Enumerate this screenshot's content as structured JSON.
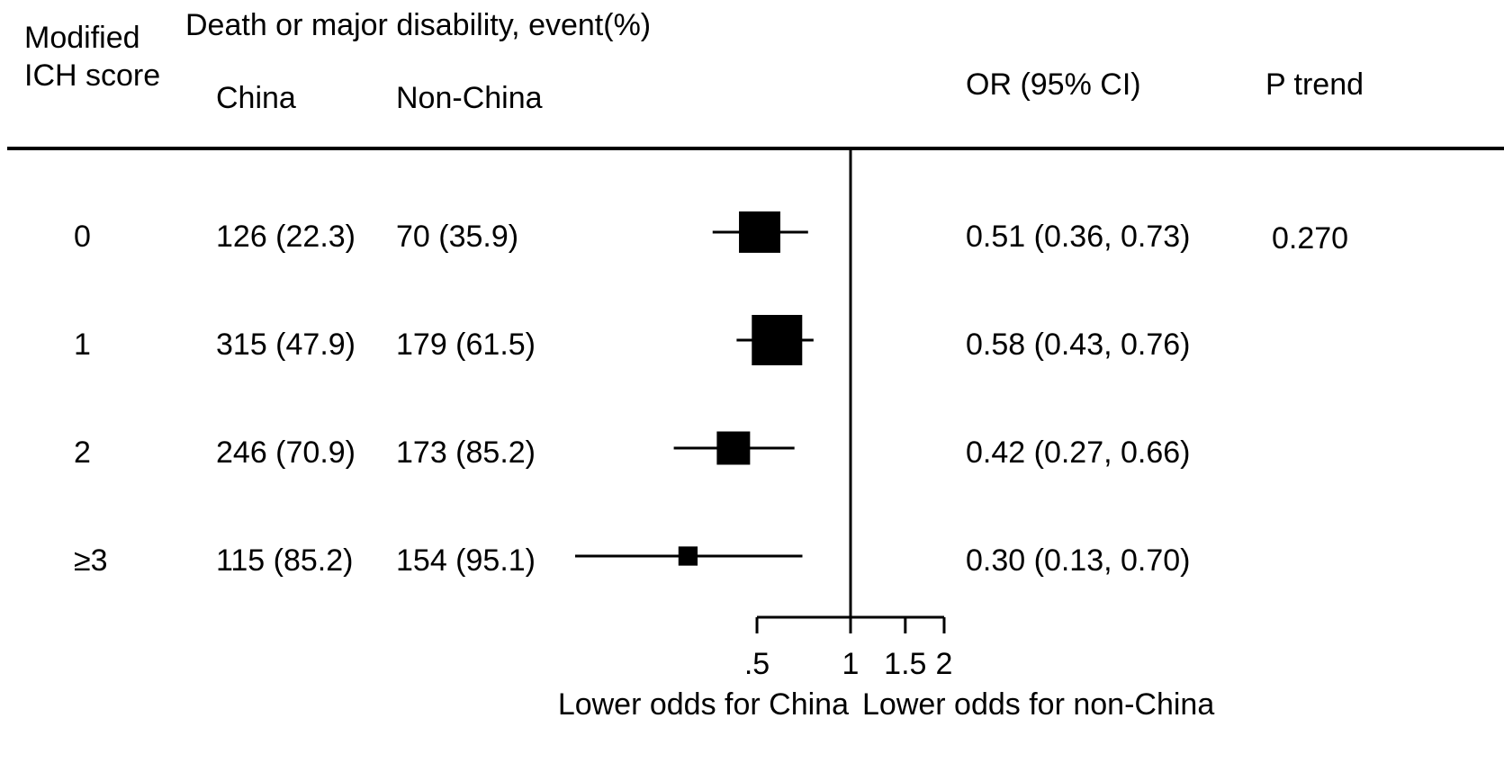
{
  "header": {
    "row_col_line1": "Modified",
    "row_col_line2": "ICH score",
    "group_title": "Death or major disability, event(%)",
    "col_china": "China",
    "col_nonchina": "Non-China",
    "col_or": "OR (95% CI)",
    "col_p": "P trend"
  },
  "rows": [
    {
      "score": "0",
      "china": "126 (22.3)",
      "nonchina": "70 (35.9)",
      "or_text": "0.51 (0.36, 0.73)",
      "p_trend": "0.270"
    },
    {
      "score": "1",
      "china": "315 (47.9)",
      "nonchina": "179 (61.5)",
      "or_text": "0.58 (0.43, 0.76)",
      "p_trend": ""
    },
    {
      "score": "2",
      "china": "246 (70.9)",
      "nonchina": "173 (85.2)",
      "or_text": "0.42 (0.27, 0.66)",
      "p_trend": ""
    },
    {
      "score": "≥3",
      "china": "115 (85.2)",
      "nonchina": "154 (95.1)",
      "or_text": "0.30 (0.13, 0.70)",
      "p_trend": ""
    }
  ],
  "chart_data": {
    "type": "forest",
    "scale": "log",
    "reference_line": 1,
    "categories": [
      "0",
      "1",
      "2",
      "≥3"
    ],
    "or": [
      0.51,
      0.58,
      0.42,
      0.3
    ],
    "ci_low": [
      0.36,
      0.43,
      0.27,
      0.13
    ],
    "ci_high": [
      0.73,
      0.76,
      0.66,
      0.7
    ],
    "marker_weight": [
      0.82,
      1.0,
      0.66,
      0.38
    ],
    "ticks": [
      {
        "value": 0.5,
        "label": ".5"
      },
      {
        "value": 1,
        "label": "1"
      },
      {
        "value": 1.5,
        "label": "1.5"
      },
      {
        "value": 2,
        "label": "2"
      }
    ],
    "label_left": "Lower odds for China",
    "label_right": "Lower odds for non-China"
  }
}
